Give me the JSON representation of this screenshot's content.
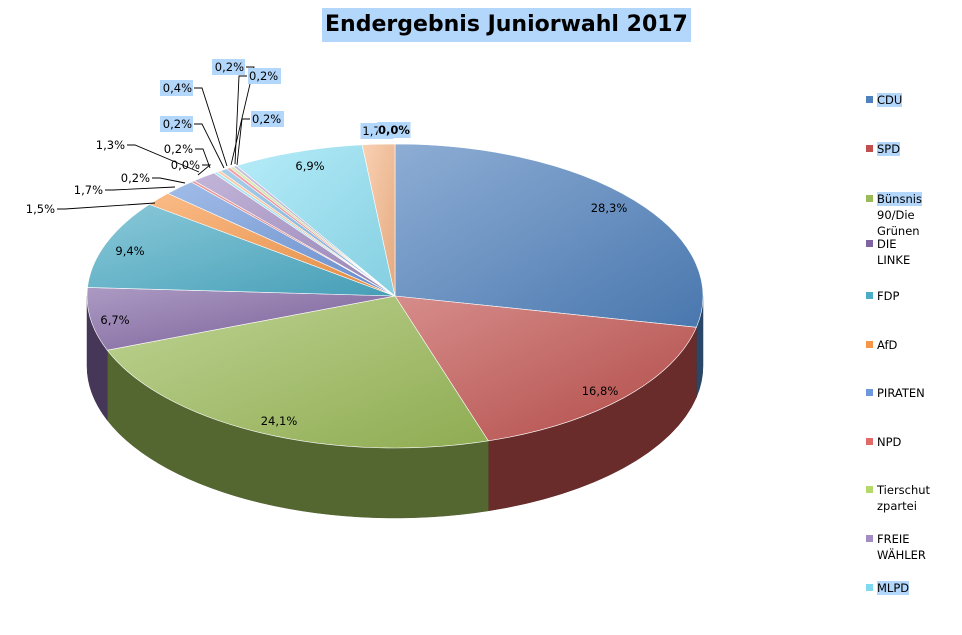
{
  "chart_data": {
    "type": "pie",
    "title": "Endergebnis Juniorwahl 2017",
    "series": [
      {
        "values": [
          28.3,
          16.8,
          24.1,
          6.7,
          9.4,
          1.5,
          1.7,
          0.2,
          0.0,
          1.3,
          0.2,
          0.2,
          0.4,
          0.2,
          0.2,
          0.2,
          6.9,
          1.7,
          0.0
        ],
        "labels": [
          "28,3%",
          "16,8%",
          "24,1%",
          "6,7%",
          "9,4%",
          "1,5%",
          "1,7%",
          "0,2%",
          "0,0%",
          "1,3%",
          "0,2%",
          "0,2%",
          "0,4%",
          "0,2%",
          "0,2%",
          "0,2%",
          "6,9%",
          "1,7%",
          "0,0%"
        ]
      }
    ],
    "legend": {
      "position": "right",
      "entries": [
        "CDU",
        "SPD",
        "Bünsnis 90/Die Grünen",
        "DIE LINKE",
        "FDP",
        "AfD",
        "PIRATEN",
        "NPD",
        "Tierschutzpartei",
        "FREIE WÄHLER",
        "MLPD"
      ]
    },
    "colors": [
      "#4f81bd",
      "#c0504d",
      "#9bbb59",
      "#8064a2",
      "#4bacc6",
      "#f79646",
      "#6f98dc",
      "#e06b68",
      "#b4d86a",
      "#a38dc4",
      "#7fdaef",
      "#f9b27a",
      "#7bb3e0",
      "#f07080",
      "#c8e08a",
      "#b0a0d0",
      "#8fe1f5",
      "#f7b88a",
      "#cccccc"
    ]
  },
  "legend_lines": [
    [
      "CDU"
    ],
    [
      "SPD"
    ],
    [
      "Bünsnis",
      "90/Die",
      "Grünen"
    ],
    [
      "DIE",
      "LINKE"
    ],
    [
      "FDP"
    ],
    [
      "AfD"
    ],
    [
      "PIRATEN"
    ],
    [
      "NPD"
    ],
    [
      "Tierschut",
      "zpartei"
    ],
    [
      "FREIE",
      "WÄHLER"
    ],
    [
      "MLPD"
    ]
  ]
}
